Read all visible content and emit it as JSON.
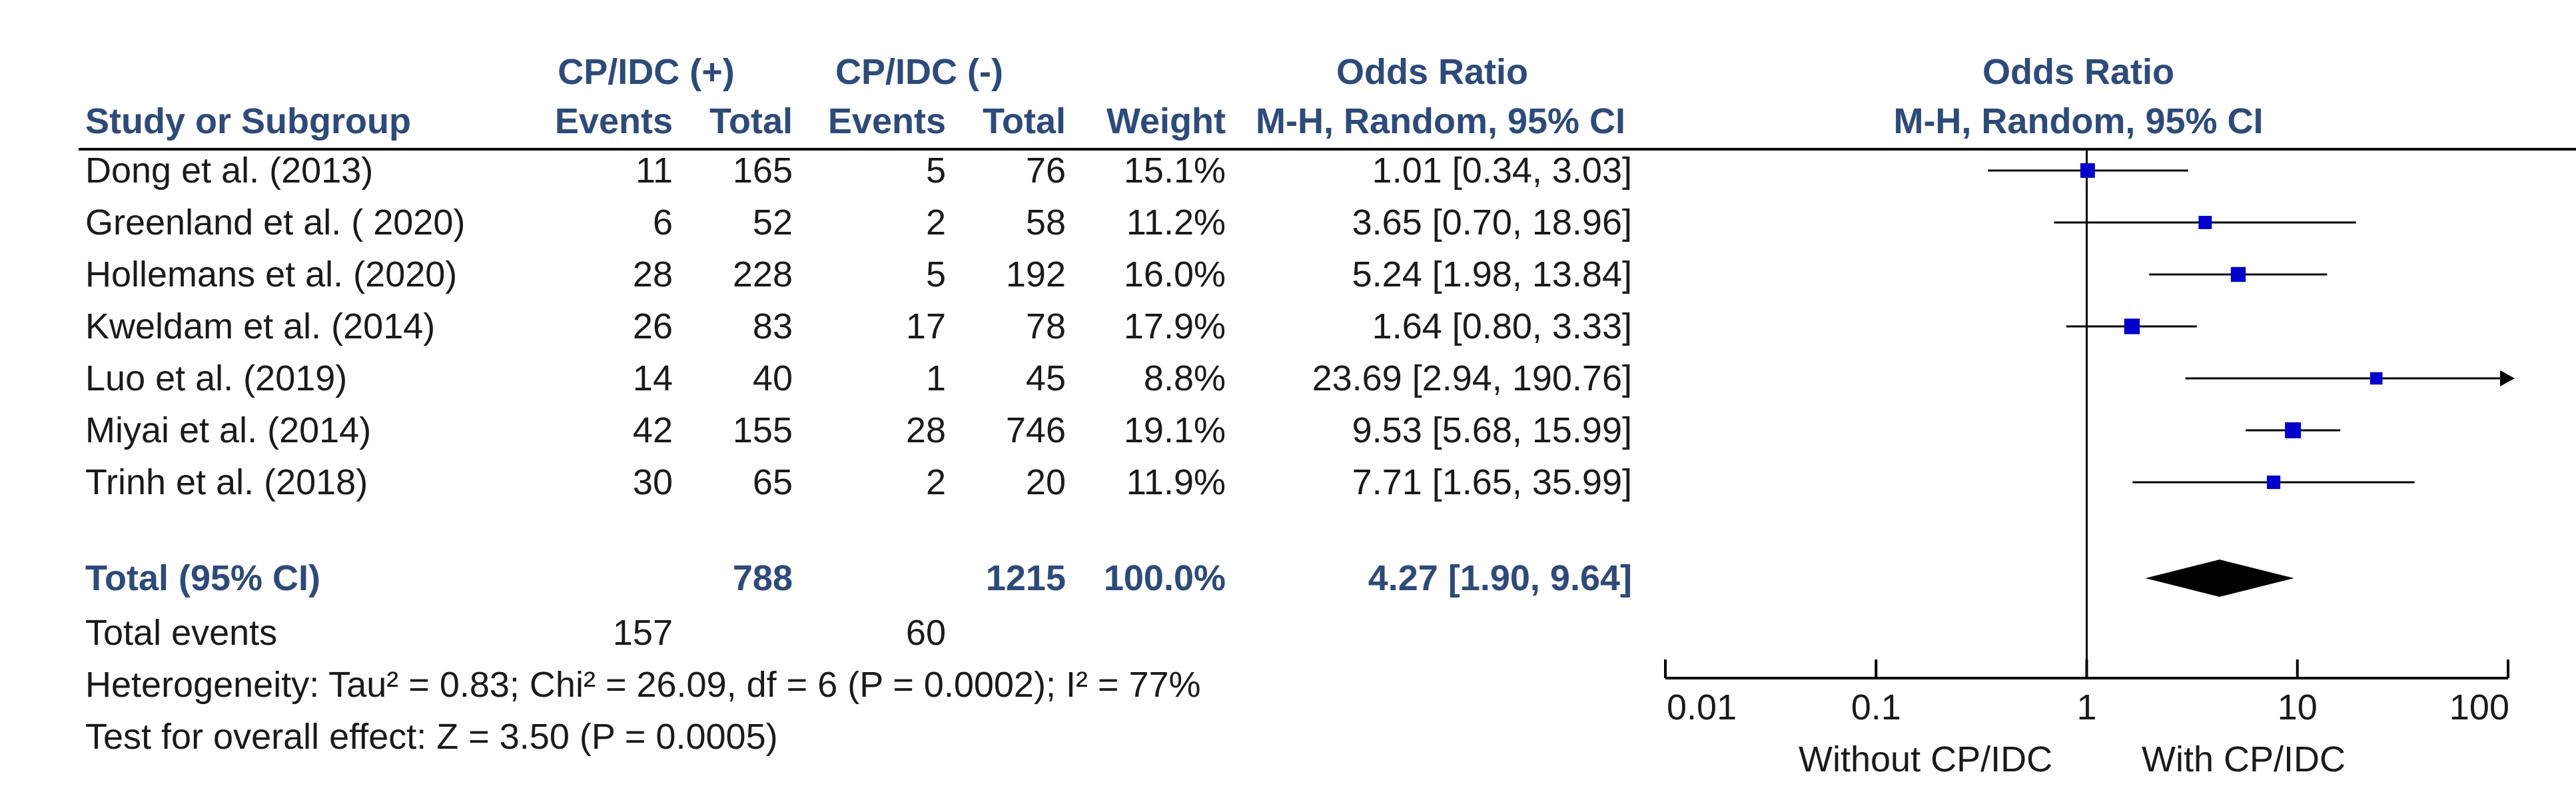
{
  "headers": {
    "group_experimental": "CP/IDC (+)",
    "group_control": "CP/IDC (-)",
    "odds_ratio_table": "Odds Ratio",
    "odds_ratio_plot": "Odds Ratio",
    "study": "Study or Subgroup",
    "events_exp": "Events",
    "total_exp": "Total",
    "events_ctl": "Events",
    "total_ctl": "Total",
    "weight": "Weight",
    "method_table": "M-H, Random, 95% CI",
    "method_plot": "M-H, Random, 95% CI"
  },
  "studies": [
    {
      "name": "Dong et al. (2013)",
      "events_exp": "11",
      "total_exp": "165",
      "events_ctl": "5",
      "total_ctl": "76",
      "weight": "15.1%",
      "ci_text": "1.01 [0.34, 3.03]"
    },
    {
      "name": "Greenland et al. ( 2020)",
      "events_exp": "6",
      "total_exp": "52",
      "events_ctl": "2",
      "total_ctl": "58",
      "weight": "11.2%",
      "ci_text": "3.65 [0.70, 18.96]"
    },
    {
      "name": "Hollemans et al. (2020)",
      "events_exp": "28",
      "total_exp": "228",
      "events_ctl": "5",
      "total_ctl": "192",
      "weight": "16.0%",
      "ci_text": "5.24 [1.98, 13.84]"
    },
    {
      "name": "Kweldam et al. (2014)",
      "events_exp": "26",
      "total_exp": "83",
      "events_ctl": "17",
      "total_ctl": "78",
      "weight": "17.9%",
      "ci_text": "1.64 [0.80, 3.33]"
    },
    {
      "name": "Luo et al. (2019)",
      "events_exp": "14",
      "total_exp": "40",
      "events_ctl": "1",
      "total_ctl": "45",
      "weight": "8.8%",
      "ci_text": "23.69 [2.94, 190.76]"
    },
    {
      "name": "Miyai et al. (2014)",
      "events_exp": "42",
      "total_exp": "155",
      "events_ctl": "28",
      "total_ctl": "746",
      "weight": "19.1%",
      "ci_text": "9.53 [5.68, 15.99]"
    },
    {
      "name": "Trinh et al. (2018)",
      "events_exp": "30",
      "total_exp": "65",
      "events_ctl": "2",
      "total_ctl": "20",
      "weight": "11.9%",
      "ci_text": "7.71 [1.65, 35.99]"
    }
  ],
  "total": {
    "label": "Total (95% CI)",
    "total_exp": "788",
    "total_ctl": "1215",
    "weight": "100.0%",
    "ci_text": "4.27 [1.90, 9.64]"
  },
  "total_events": {
    "label": "Total events",
    "exp": "157",
    "ctl": "60"
  },
  "heterogeneity": "Heterogeneity: Tau² = 0.83; Chi² = 26.09, df = 6 (P = 0.0002); I² = 77%",
  "overall_effect": "Test for overall effect: Z = 3.50 (P = 0.0005)",
  "axis": {
    "ticks": [
      "0.01",
      "0.1",
      "1",
      "10",
      "100"
    ],
    "label_left": "Without CP/IDC",
    "label_right": "With CP/IDC"
  },
  "colors": {
    "header": "#2d4a7a",
    "marker": "#0000cc",
    "line": "#000000"
  },
  "chart_data": {
    "type": "forest",
    "scale": "log",
    "xlim": [
      0.01,
      100
    ],
    "ticks": [
      0.01,
      0.1,
      1,
      10,
      100
    ],
    "null_line": 1,
    "series": [
      {
        "study": "Dong et al. (2013)",
        "or": 1.01,
        "lo": 0.34,
        "hi": 3.03,
        "weight": 15.1
      },
      {
        "study": "Greenland et al. ( 2020)",
        "or": 3.65,
        "lo": 0.7,
        "hi": 18.96,
        "weight": 11.2
      },
      {
        "study": "Hollemans et al. (2020)",
        "or": 5.24,
        "lo": 1.98,
        "hi": 13.84,
        "weight": 16.0
      },
      {
        "study": "Kweldam et al. (2014)",
        "or": 1.64,
        "lo": 0.8,
        "hi": 3.33,
        "weight": 17.9
      },
      {
        "study": "Luo et al. (2019)",
        "or": 23.69,
        "lo": 2.94,
        "hi": 190.76,
        "weight": 8.8
      },
      {
        "study": "Miyai et al. (2014)",
        "or": 9.53,
        "lo": 5.68,
        "hi": 15.99,
        "weight": 19.1
      },
      {
        "study": "Trinh et al. (2018)",
        "or": 7.71,
        "lo": 1.65,
        "hi": 35.99,
        "weight": 11.9
      }
    ],
    "pooled": {
      "or": 4.27,
      "lo": 1.9,
      "hi": 9.64
    }
  }
}
